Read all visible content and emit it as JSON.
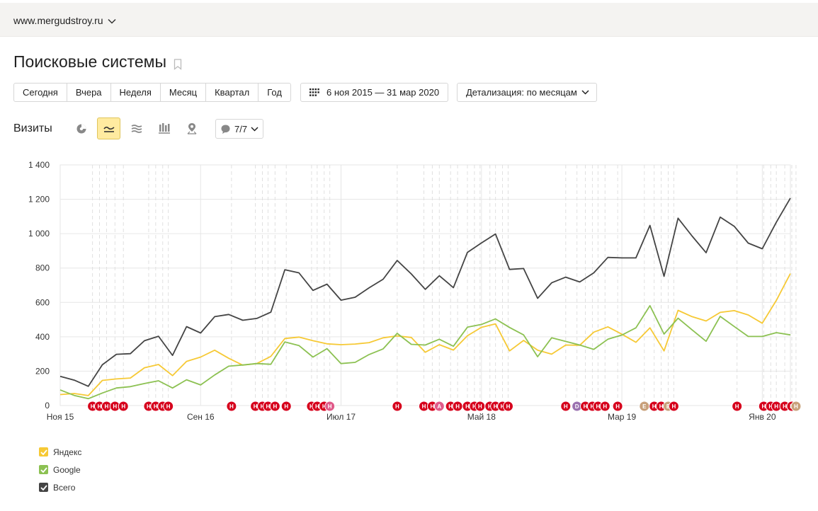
{
  "header": {
    "site": "www.mergudstroy.ru"
  },
  "page": {
    "title": "Поисковые системы"
  },
  "periods": [
    "Сегодня",
    "Вчера",
    "Неделя",
    "Месяц",
    "Квартал",
    "Год"
  ],
  "date_range": "6 ноя 2015 — 31 мар 2020",
  "detail": "Детализация: по месяцам",
  "metric": "Визиты",
  "notes": {
    "label": "7/7"
  },
  "colors": {
    "yandex": "#f6c935",
    "google": "#8cc152",
    "total": "#444444",
    "note": "#d6001c",
    "note_a": "#e05b8a",
    "note_d": "#9b72b0",
    "note_e": "#c8a07a"
  },
  "legend": [
    {
      "name": "Яндекс",
      "color": "#f6c935"
    },
    {
      "name": "Google",
      "color": "#8cc152"
    },
    {
      "name": "Всего",
      "color": "#444444"
    }
  ],
  "chart_data": {
    "type": "line",
    "ylim": [
      0,
      1400
    ],
    "yticks": [
      "0",
      "200",
      "400",
      "600",
      "800",
      "1 000",
      "1 200",
      "1 400"
    ],
    "xtick_labels": [
      {
        "index": 0,
        "label": "Ноя 15"
      },
      {
        "index": 10,
        "label": "Сен 16"
      },
      {
        "index": 20,
        "label": "Июл 17"
      },
      {
        "index": 30,
        "label": "Май 18"
      },
      {
        "index": 40,
        "label": "Мар 19"
      },
      {
        "index": 50,
        "label": "Янв 20"
      }
    ],
    "series": [
      {
        "name": "Всего",
        "color": "#444444",
        "values": [
          170,
          148,
          112,
          237,
          298,
          302,
          377,
          403,
          292,
          459,
          422,
          517,
          530,
          496,
          507,
          543,
          790,
          772,
          670,
          706,
          613,
          630,
          685,
          735,
          844,
          766,
          676,
          755,
          686,
          891,
          946,
          998,
          792,
          797,
          624,
          714,
          747,
          719,
          772,
          862,
          859,
          859,
          1048,
          752,
          1090,
          986,
          889,
          1096,
          1043,
          945,
          912,
          1067,
          1207
        ]
      },
      {
        "name": "Яндекс",
        "color": "#f6c935",
        "values": [
          64,
          70,
          58,
          146,
          155,
          160,
          220,
          239,
          174,
          257,
          282,
          322,
          275,
          235,
          244,
          286,
          390,
          398,
          377,
          359,
          354,
          358,
          366,
          394,
          405,
          396,
          310,
          354,
          323,
          406,
          455,
          475,
          318,
          379,
          322,
          299,
          352,
          351,
          427,
          458,
          415,
          368,
          452,
          318,
          554,
          517,
          492,
          542,
          552,
          527,
          479,
          612,
          768
        ]
      },
      {
        "name": "Google",
        "color": "#8cc152",
        "values": [
          91,
          59,
          40,
          73,
          102,
          110,
          128,
          144,
          102,
          150,
          120,
          178,
          229,
          236,
          244,
          240,
          370,
          349,
          282,
          331,
          244,
          251,
          297,
          330,
          420,
          356,
          352,
          386,
          345,
          456,
          472,
          504,
          454,
          411,
          284,
          394,
          373,
          352,
          327,
          386,
          410,
          452,
          581,
          416,
          508,
          440,
          374,
          519,
          460,
          402,
          402,
          424,
          411
        ]
      }
    ],
    "annotations": [
      {
        "index": 2.3,
        "label": "Н"
      },
      {
        "index": 2.8,
        "label": "Н"
      },
      {
        "index": 3.3,
        "label": "Н"
      },
      {
        "index": 3.9,
        "label": "Н"
      },
      {
        "index": 4.5,
        "label": "Н"
      },
      {
        "index": 6.3,
        "label": "Н"
      },
      {
        "index": 6.8,
        "label": "Н"
      },
      {
        "index": 7.3,
        "label": "Н"
      },
      {
        "index": 7.7,
        "label": "Н"
      },
      {
        "index": 12.2,
        "label": "Н"
      },
      {
        "index": 13.9,
        "label": "Н"
      },
      {
        "index": 14.4,
        "label": "Н"
      },
      {
        "index": 14.8,
        "label": "Н"
      },
      {
        "index": 15.3,
        "label": "Н"
      },
      {
        "index": 16.1,
        "label": "Н"
      },
      {
        "index": 17.9,
        "label": "Н"
      },
      {
        "index": 18.3,
        "label": "Н"
      },
      {
        "index": 18.8,
        "label": "Н"
      },
      {
        "index": 19.2,
        "label": "Н",
        "kind": "a"
      },
      {
        "index": 24.0,
        "label": "Н"
      },
      {
        "index": 25.9,
        "label": "Н"
      },
      {
        "index": 26.5,
        "label": "Н"
      },
      {
        "index": 27.0,
        "label": "А",
        "kind": "a"
      },
      {
        "index": 27.8,
        "label": "Н"
      },
      {
        "index": 28.3,
        "label": "Н"
      },
      {
        "index": 29.0,
        "label": "Н"
      },
      {
        "index": 29.5,
        "label": "Н"
      },
      {
        "index": 29.9,
        "label": "Н"
      },
      {
        "index": 30.6,
        "label": "Н"
      },
      {
        "index": 31.0,
        "label": "Н"
      },
      {
        "index": 31.5,
        "label": "Н"
      },
      {
        "index": 31.9,
        "label": "Н"
      },
      {
        "index": 36.0,
        "label": "Н"
      },
      {
        "index": 36.8,
        "label": "D",
        "kind": "d"
      },
      {
        "index": 37.4,
        "label": "Н"
      },
      {
        "index": 37.9,
        "label": "Н"
      },
      {
        "index": 38.3,
        "label": "Н"
      },
      {
        "index": 38.8,
        "label": "Н"
      },
      {
        "index": 39.7,
        "label": "Н"
      },
      {
        "index": 41.6,
        "label": "Е",
        "kind": "e"
      },
      {
        "index": 42.3,
        "label": "Н"
      },
      {
        "index": 42.8,
        "label": "Н"
      },
      {
        "index": 43.3,
        "label": "Е",
        "kind": "e"
      },
      {
        "index": 43.7,
        "label": "Н"
      },
      {
        "index": 48.2,
        "label": "Н"
      },
      {
        "index": 50.1,
        "label": "Н"
      },
      {
        "index": 50.6,
        "label": "Н"
      },
      {
        "index": 51.0,
        "label": "Н"
      },
      {
        "index": 51.6,
        "label": "Н"
      },
      {
        "index": 52.1,
        "label": "Н"
      },
      {
        "index": 52.4,
        "label": "Н",
        "kind": "e"
      }
    ],
    "grid": true,
    "legend_position": "bottom-left"
  }
}
